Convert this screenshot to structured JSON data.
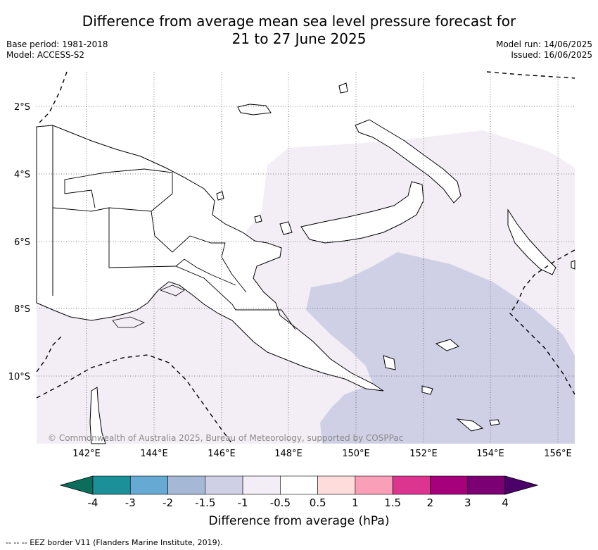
{
  "title_line1": "Difference from average mean sea level pressure forecast for",
  "title_line2": "21 to 27 June 2025",
  "base_period": "Base period: 1981-2018",
  "model": "Model: ACCESS-S2",
  "model_run": "Model run: 14/06/2025",
  "issued": "Issued: 16/06/2025",
  "copyright": "© Commonwealth of Australia 2025, Bureau of Meteorology, supported by COSPPac",
  "footnote": "--  --  -- EEZ border V11 (Flanders Marine Institute, 2019).",
  "colorbar": {
    "title": "Difference from average (hPa)",
    "labels": [
      "-4",
      "-3",
      "-2",
      "-1.5",
      "-1",
      "-0.5",
      "0.5",
      "1",
      "1.5",
      "2",
      "3",
      "4"
    ],
    "colors": [
      "#1b9098",
      "#66a9d3",
      "#a5b9d6",
      "#cfd0e6",
      "#f3edf5",
      "#ffffff",
      "#ffdcdc",
      "#f9a0b8",
      "#db3590",
      "#a7007d",
      "#7a0073"
    ],
    "under_color": "#0b6e5c",
    "over_color": "#4b006a"
  },
  "map": {
    "lon_labels": [
      "142°E",
      "144°E",
      "146°E",
      "148°E",
      "150°E",
      "152°E",
      "154°E",
      "156°E"
    ],
    "lat_labels": [
      "2°S",
      "4°S",
      "6°S",
      "8°S",
      "10°S"
    ],
    "land_color": "#ffffff",
    "shade_light": "#f3edf5",
    "shade_medium": "#cfd0e6"
  }
}
